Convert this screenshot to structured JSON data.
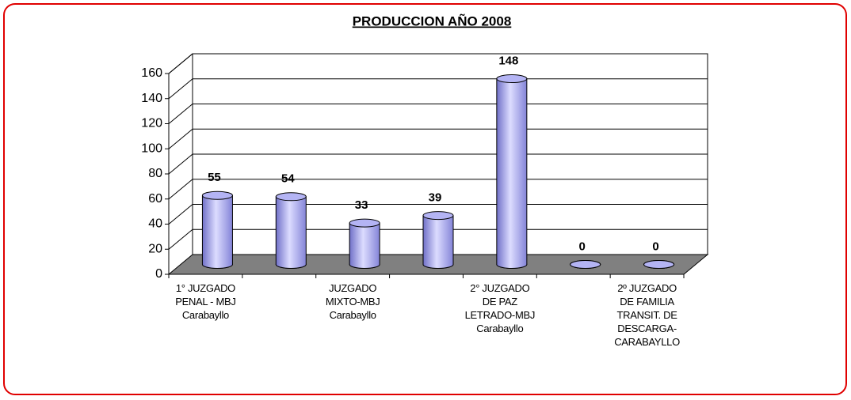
{
  "chart_data": {
    "type": "bar",
    "title": "PRODUCCION AÑO 2008",
    "categories": [
      "1° JUZGADO\nPENAL - MBJ\nCarabayllo",
      null,
      "JUZGADO\nMIXTO-MBJ\nCarabayllo",
      null,
      "2° JUZGADO\nDE PAZ\nLETRADO-MBJ\nCarabayllo",
      null,
      "2º JUZGADO\nDE FAMILIA\nTRANSIT. DE\nDESCARGA-\nCARABAYLLO"
    ],
    "values": [
      55,
      54,
      33,
      39,
      148,
      0,
      0
    ],
    "color": "#b4b4f4",
    "ylim": [
      0,
      160
    ],
    "yticks": [
      0,
      20,
      40,
      60,
      80,
      100,
      120,
      140,
      160
    ],
    "grid": true
  }
}
